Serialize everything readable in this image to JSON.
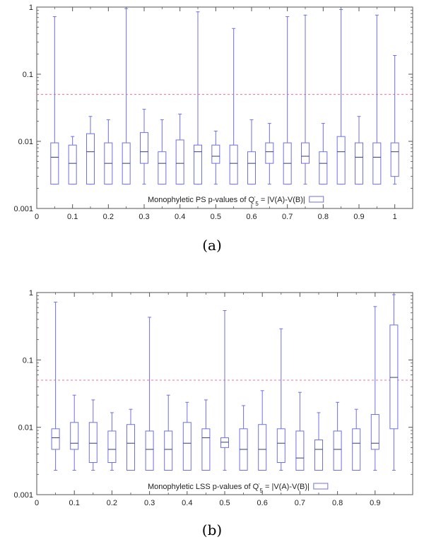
{
  "chart_data": [
    {
      "type": "box",
      "caption": "(a)",
      "legend": {
        "label": "Monophyletic PS p-values of Q",
        "sup": "'",
        "sub": "5",
        "tail": " = |V(A)-V(B)|",
        "placement": "bottom-center"
      },
      "xlim": [
        0,
        1.05
      ],
      "ylim": [
        0.001,
        1
      ],
      "yscale": "log",
      "xticks": [
        0,
        0.1,
        0.2,
        0.3,
        0.4,
        0.5,
        0.6,
        0.7,
        0.8,
        0.9,
        1
      ],
      "xtick_labels": [
        "0",
        "0.1",
        "0.2",
        "0.3",
        "0.4",
        "0.5",
        "0.6",
        "0.7",
        "0.8",
        "0.9",
        "1"
      ],
      "yticks": [
        0.001,
        0.01,
        0.1,
        1
      ],
      "ytick_labels": [
        "0.001",
        "0.01",
        "0.1",
        "1"
      ],
      "threshold": 0.05,
      "colors": {
        "box": "#6f6fe6",
        "threshold": "#ee6f9f"
      },
      "boxes": [
        {
          "x": 0.05,
          "min": 0.0023,
          "q1": 0.0023,
          "median": 0.0058,
          "q3": 0.0095,
          "max": 0.72
        },
        {
          "x": 0.1,
          "min": 0.0023,
          "q1": 0.0023,
          "median": 0.0047,
          "q3": 0.0088,
          "max": 0.0118
        },
        {
          "x": 0.15,
          "min": 0.0023,
          "q1": 0.0023,
          "median": 0.007,
          "q3": 0.013,
          "max": 0.0235
        },
        {
          "x": 0.2,
          "min": 0.0023,
          "q1": 0.0023,
          "median": 0.0047,
          "q3": 0.0095,
          "max": 0.021
        },
        {
          "x": 0.25,
          "min": 0.0023,
          "q1": 0.0023,
          "median": 0.0047,
          "q3": 0.0095,
          "max": 0.95
        },
        {
          "x": 0.3,
          "min": 0.0023,
          "q1": 0.0047,
          "median": 0.007,
          "q3": 0.0135,
          "max": 0.03
        },
        {
          "x": 0.35,
          "min": 0.0023,
          "q1": 0.0023,
          "median": 0.0047,
          "q3": 0.007,
          "max": 0.021
        },
        {
          "x": 0.4,
          "min": 0.0023,
          "q1": 0.0023,
          "median": 0.0047,
          "q3": 0.0105,
          "max": 0.0255
        },
        {
          "x": 0.45,
          "min": 0.0023,
          "q1": 0.0023,
          "median": 0.007,
          "q3": 0.0088,
          "max": 0.85
        },
        {
          "x": 0.5,
          "min": 0.0023,
          "q1": 0.0047,
          "median": 0.006,
          "q3": 0.0088,
          "max": 0.0142
        },
        {
          "x": 0.55,
          "min": 0.0023,
          "q1": 0.0023,
          "median": 0.0047,
          "q3": 0.0088,
          "max": 0.48
        },
        {
          "x": 0.6,
          "min": 0.0023,
          "q1": 0.0023,
          "median": 0.0047,
          "q3": 0.007,
          "max": 0.021
        },
        {
          "x": 0.65,
          "min": 0.0023,
          "q1": 0.0047,
          "median": 0.007,
          "q3": 0.0095,
          "max": 0.0185
        },
        {
          "x": 0.7,
          "min": 0.0023,
          "q1": 0.0023,
          "median": 0.0047,
          "q3": 0.0095,
          "max": 0.72
        },
        {
          "x": 0.75,
          "min": 0.0023,
          "q1": 0.0047,
          "median": 0.006,
          "q3": 0.0095,
          "max": 0.76
        },
        {
          "x": 0.8,
          "min": 0.0023,
          "q1": 0.0023,
          "median": 0.0047,
          "q3": 0.007,
          "max": 0.0185
        },
        {
          "x": 0.85,
          "min": 0.0023,
          "q1": 0.0023,
          "median": 0.007,
          "q3": 0.0118,
          "max": 0.92
        },
        {
          "x": 0.9,
          "min": 0.0023,
          "q1": 0.0023,
          "median": 0.0058,
          "q3": 0.0095,
          "max": 0.0235
        },
        {
          "x": 0.95,
          "min": 0.0023,
          "q1": 0.0023,
          "median": 0.0058,
          "q3": 0.0095,
          "max": 0.76
        },
        {
          "x": 1.0,
          "min": 0.0023,
          "q1": 0.003,
          "median": 0.007,
          "q3": 0.0095,
          "max": 0.19
        }
      ]
    },
    {
      "type": "box",
      "caption": "(b)",
      "legend": {
        "label": "Monophyletic LSS p-values of Q",
        "sup": "'",
        "sub": "5",
        "tail": " = |V(A)-V(B)|",
        "placement": "bottom-right"
      },
      "xlim": [
        0,
        1.0
      ],
      "ylim": [
        0.001,
        1
      ],
      "yscale": "log",
      "xticks": [
        0,
        0.1,
        0.2,
        0.3,
        0.4,
        0.5,
        0.6,
        0.7,
        0.8,
        0.9
      ],
      "xtick_labels": [
        "0",
        "0.1",
        "0.2",
        "0.3",
        "0.4",
        "0.5",
        "0.6",
        "0.7",
        "0.8",
        "0.9"
      ],
      "yticks": [
        0.001,
        0.01,
        0.1,
        1
      ],
      "ytick_labels": [
        "0.001",
        "0.01",
        "0.1",
        "1"
      ],
      "threshold": 0.05,
      "colors": {
        "box": "#6f6fe6",
        "threshold": "#ee6f9f"
      },
      "boxes": [
        {
          "x": 0.05,
          "min": 0.0023,
          "q1": 0.0047,
          "median": 0.007,
          "q3": 0.0095,
          "max": 0.72
        },
        {
          "x": 0.1,
          "min": 0.0023,
          "q1": 0.0047,
          "median": 0.0058,
          "q3": 0.0118,
          "max": 0.03
        },
        {
          "x": 0.15,
          "min": 0.0023,
          "q1": 0.003,
          "median": 0.0058,
          "q3": 0.0118,
          "max": 0.0255
        },
        {
          "x": 0.2,
          "min": 0.0023,
          "q1": 0.003,
          "median": 0.0047,
          "q3": 0.0088,
          "max": 0.0165
        },
        {
          "x": 0.25,
          "min": 0.0023,
          "q1": 0.0023,
          "median": 0.0058,
          "q3": 0.011,
          "max": 0.0185
        },
        {
          "x": 0.3,
          "min": 0.0023,
          "q1": 0.0023,
          "median": 0.0047,
          "q3": 0.0088,
          "max": 0.43
        },
        {
          "x": 0.35,
          "min": 0.0023,
          "q1": 0.0023,
          "median": 0.0047,
          "q3": 0.0088,
          "max": 0.03
        },
        {
          "x": 0.4,
          "min": 0.0023,
          "q1": 0.0023,
          "median": 0.0058,
          "q3": 0.0118,
          "max": 0.0235
        },
        {
          "x": 0.45,
          "min": 0.0023,
          "q1": 0.0023,
          "median": 0.007,
          "q3": 0.0095,
          "max": 0.0255
        },
        {
          "x": 0.5,
          "min": 0.0023,
          "q1": 0.005,
          "median": 0.006,
          "q3": 0.007,
          "max": 0.54
        },
        {
          "x": 0.55,
          "min": 0.0023,
          "q1": 0.0023,
          "median": 0.0047,
          "q3": 0.0095,
          "max": 0.021
        },
        {
          "x": 0.6,
          "min": 0.0023,
          "q1": 0.0023,
          "median": 0.0047,
          "q3": 0.011,
          "max": 0.035
        },
        {
          "x": 0.65,
          "min": 0.0023,
          "q1": 0.003,
          "median": 0.0058,
          "q3": 0.0095,
          "max": 0.29
        },
        {
          "x": 0.7,
          "min": 0.0023,
          "q1": 0.0023,
          "median": 0.0035,
          "q3": 0.0088,
          "max": 0.033
        },
        {
          "x": 0.75,
          "min": 0.0023,
          "q1": 0.0023,
          "median": 0.0047,
          "q3": 0.0065,
          "max": 0.0165
        },
        {
          "x": 0.8,
          "min": 0.0023,
          "q1": 0.0023,
          "median": 0.0047,
          "q3": 0.0088,
          "max": 0.0235
        },
        {
          "x": 0.85,
          "min": 0.0023,
          "q1": 0.0023,
          "median": 0.0058,
          "q3": 0.0095,
          "max": 0.0185
        },
        {
          "x": 0.9,
          "min": 0.0023,
          "q1": 0.0047,
          "median": 0.0058,
          "q3": 0.0155,
          "max": 0.62
        },
        {
          "x": 0.95,
          "min": 0.0023,
          "q1": 0.0095,
          "median": 0.055,
          "q3": 0.33,
          "max": 0.93
        }
      ]
    }
  ]
}
